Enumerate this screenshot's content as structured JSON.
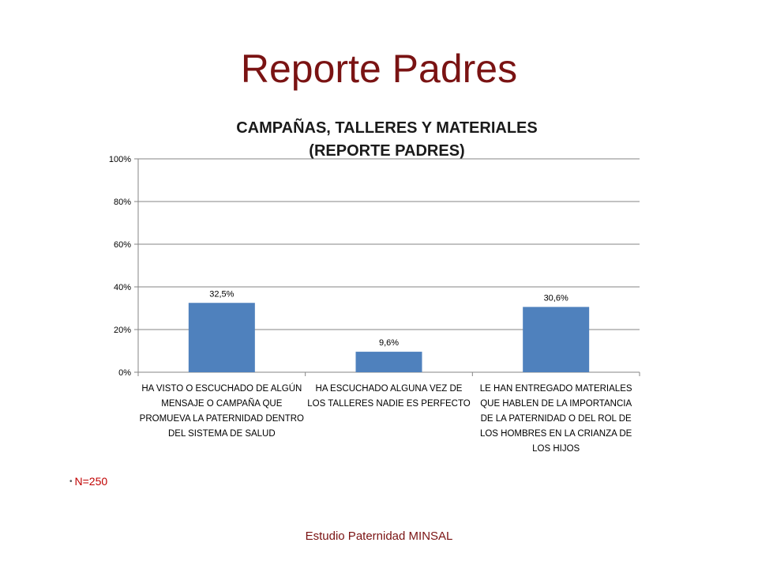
{
  "slide": {
    "title": "Reporte Padres",
    "bullet": "N=250",
    "footer": "Estudio Paternidad MINSAL"
  },
  "chart_data": {
    "type": "bar",
    "title_line1": "CAMPAÑAS, TALLERES Y MATERIALES",
    "title_line2": "(REPORTE PADRES)",
    "categories": [
      "HA VISTO O ESCUCHADO DE ALGÚN MENSAJE O CAMPAÑA QUE PROMUEVA LA PATERNIDAD DENTRO DEL SISTEMA DE SALUD",
      "HA ESCUCHADO ALGUNA VEZ DE LOS TALLERES NADIE ES PERFECTO",
      "LE HAN ENTREGADO MATERIALES QUE HABLEN DE LA IMPORTANCIA DE LA PATERNIDAD O DEL ROL DE LOS HOMBRES EN LA CRIANZA DE LOS HIJOS"
    ],
    "values": [
      32.5,
      9.6,
      30.6
    ],
    "data_labels": [
      "32,5%",
      "9,6%",
      "30,6%"
    ],
    "ylim": [
      0,
      100
    ],
    "yticks": [
      "0%",
      "20%",
      "40%",
      "60%",
      "80%",
      "100%"
    ],
    "bar_color": "#4f81bd",
    "grid": true,
    "xlabel": "",
    "ylabel": ""
  }
}
